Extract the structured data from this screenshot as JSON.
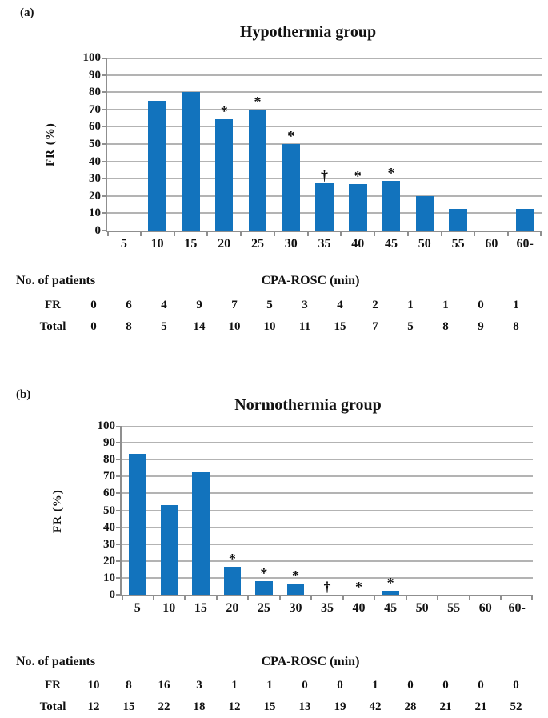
{
  "figure": {
    "panels": [
      {
        "label": "(a)",
        "table": {
          "row_header": "No. of patients",
          "rows": [
            {
              "label": "FR",
              "values": [
                "0",
                "6",
                "4",
                "9",
                "7",
                "5",
                "3",
                "4",
                "2",
                "1",
                "1",
                "0",
                "1"
              ]
            },
            {
              "label": "Total",
              "values": [
                "0",
                "8",
                "5",
                "14",
                "10",
                "10",
                "11",
                "15",
                "7",
                "5",
                "8",
                "9",
                "8"
              ]
            }
          ]
        }
      },
      {
        "label": "(b)",
        "table": {
          "row_header": "No. of patients",
          "rows": [
            {
              "label": "FR",
              "values": [
                "10",
                "8",
                "16",
                "3",
                "1",
                "1",
                "0",
                "0",
                "1",
                "0",
                "0",
                "0",
                "0"
              ]
            },
            {
              "label": "Total",
              "values": [
                "12",
                "15",
                "22",
                "18",
                "12",
                "15",
                "13",
                "19",
                "42",
                "28",
                "21",
                "21",
                "52"
              ]
            }
          ]
        }
      }
    ]
  },
  "chart_data": [
    {
      "type": "bar",
      "title": "Hypothermia group",
      "categories": [
        "5",
        "10",
        "15",
        "20",
        "25",
        "30",
        "35",
        "40",
        "45",
        "50",
        "55",
        "60",
        "60-"
      ],
      "values": [
        0,
        75,
        80,
        64.3,
        70,
        50,
        27.3,
        26.7,
        28.6,
        20,
        12.5,
        0,
        12.5
      ],
      "annotations": [
        "",
        "",
        "",
        "*",
        "*",
        "*",
        "†",
        "*",
        "*",
        "",
        "",
        "",
        ""
      ],
      "xlabel": "CPA-ROSC (min)",
      "ylabel": "FR (%)",
      "ylim": [
        0,
        100
      ],
      "ytick_step": 10,
      "grid": true,
      "legend": "none",
      "bar_color": "#1273BD",
      "gridline_color": "#b3b3b3"
    },
    {
      "type": "bar",
      "title": "Normothermia group",
      "categories": [
        "5",
        "10",
        "15",
        "20",
        "25",
        "30",
        "35",
        "40",
        "45",
        "50",
        "55",
        "60",
        "60-"
      ],
      "values": [
        83.3,
        53.3,
        72.7,
        16.7,
        8.3,
        6.7,
        0,
        0,
        2.4,
        0,
        0,
        0,
        0
      ],
      "annotations": [
        "",
        "",
        "",
        "*",
        "*",
        "*",
        "†",
        "*",
        "*",
        "",
        "",
        "",
        ""
      ],
      "xlabel": "CPA-ROSC (min)",
      "ylabel": "FR (%)",
      "ylim": [
        0,
        100
      ],
      "ytick_step": 10,
      "grid": true,
      "legend": "none",
      "bar_color": "#1273BD",
      "gridline_color": "#b3b3b3"
    }
  ]
}
